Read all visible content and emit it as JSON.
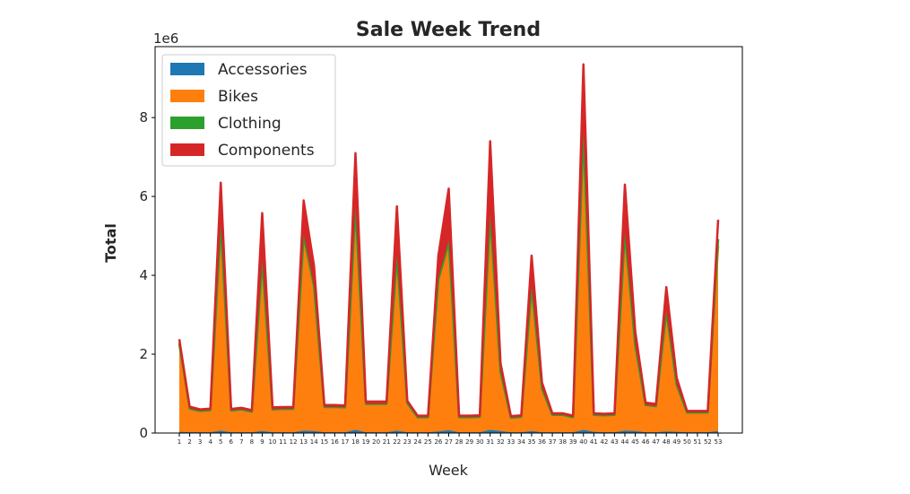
{
  "chart_data": {
    "type": "area",
    "stacked": true,
    "title": "Sale Week Trend",
    "xlabel": "Week",
    "ylabel": "Total",
    "y_multiplier_label": "1e6",
    "ylim": [
      0,
      9.8
    ],
    "y_ticks": [
      0,
      2,
      4,
      6,
      8
    ],
    "y_tick_labels": [
      "0",
      "2",
      "4",
      "6",
      "8"
    ],
    "x": [
      1,
      2,
      3,
      4,
      5,
      6,
      7,
      8,
      9,
      10,
      11,
      12,
      13,
      14,
      15,
      16,
      17,
      18,
      19,
      20,
      21,
      22,
      23,
      24,
      25,
      26,
      27,
      28,
      29,
      30,
      31,
      32,
      33,
      34,
      35,
      36,
      37,
      38,
      39,
      40,
      41,
      42,
      43,
      44,
      45,
      46,
      47,
      48,
      49,
      50,
      51,
      52,
      53
    ],
    "x_tick_labels": [
      "1",
      "2",
      "3",
      "4",
      "5",
      "6",
      "7",
      "8",
      "9",
      "10",
      "11",
      "12",
      "13",
      "14",
      "15",
      "16",
      "17",
      "18",
      "19",
      "20",
      "21",
      "22",
      "23",
      "24",
      "25",
      "26",
      "27",
      "28",
      "29",
      "30",
      "31",
      "32",
      "33",
      "34",
      "35",
      "36",
      "37",
      "38",
      "39",
      "40",
      "41",
      "42",
      "43",
      "44",
      "45",
      "46",
      "47",
      "48",
      "49",
      "50",
      "51",
      "52",
      "53"
    ],
    "grid": false,
    "legend_position": "top-left",
    "series": [
      {
        "name": "Accessories",
        "color": "#1f77b4",
        "values": [
          0.03,
          0.02,
          0.02,
          0.02,
          0.06,
          0.02,
          0.02,
          0.02,
          0.05,
          0.02,
          0.02,
          0.02,
          0.06,
          0.05,
          0.02,
          0.02,
          0.02,
          0.08,
          0.02,
          0.02,
          0.02,
          0.06,
          0.02,
          0.02,
          0.02,
          0.04,
          0.07,
          0.02,
          0.02,
          0.02,
          0.08,
          0.05,
          0.02,
          0.02,
          0.05,
          0.02,
          0.02,
          0.02,
          0.02,
          0.08,
          0.03,
          0.02,
          0.02,
          0.06,
          0.05,
          0.02,
          0.02,
          0.04,
          0.03,
          0.02,
          0.02,
          0.02,
          0.05
        ]
      },
      {
        "name": "Bikes",
        "color": "#ff7f0e",
        "values": [
          2.22,
          0.58,
          0.52,
          0.54,
          5.05,
          0.53,
          0.56,
          0.5,
          4.18,
          0.56,
          0.57,
          0.57,
          4.8,
          3.55,
          0.62,
          0.62,
          0.61,
          5.45,
          0.7,
          0.7,
          0.7,
          4.3,
          0.72,
          0.37,
          0.37,
          3.75,
          4.65,
          0.37,
          0.37,
          0.38,
          5.25,
          1.45,
          0.36,
          0.38,
          3.55,
          1.07,
          0.43,
          0.43,
          0.37,
          7.3,
          0.42,
          0.42,
          0.43,
          4.85,
          2.1,
          0.67,
          0.64,
          2.95,
          1.15,
          0.48,
          0.48,
          0.48,
          4.7
        ]
      },
      {
        "name": "Clothing",
        "color": "#2ca02c",
        "values": [
          0.03,
          0.02,
          0.02,
          0.02,
          0.18,
          0.02,
          0.02,
          0.02,
          0.15,
          0.02,
          0.02,
          0.02,
          0.17,
          0.12,
          0.02,
          0.02,
          0.02,
          0.2,
          0.02,
          0.02,
          0.02,
          0.15,
          0.02,
          0.01,
          0.01,
          0.13,
          0.16,
          0.01,
          0.01,
          0.01,
          0.2,
          0.05,
          0.01,
          0.01,
          0.12,
          0.04,
          0.01,
          0.01,
          0.01,
          0.25,
          0.01,
          0.01,
          0.01,
          0.17,
          0.07,
          0.02,
          0.02,
          0.1,
          0.04,
          0.02,
          0.02,
          0.02,
          0.17
        ]
      },
      {
        "name": "Components",
        "color": "#d62728",
        "values": [
          0.1,
          0.05,
          0.04,
          0.04,
          1.06,
          0.04,
          0.04,
          0.04,
          1.2,
          0.05,
          0.05,
          0.05,
          0.87,
          0.52,
          0.05,
          0.05,
          0.05,
          1.37,
          0.06,
          0.06,
          0.06,
          1.24,
          0.06,
          0.04,
          0.04,
          0.58,
          1.32,
          0.04,
          0.04,
          0.04,
          1.87,
          0.22,
          0.04,
          0.04,
          0.78,
          0.15,
          0.04,
          0.04,
          0.04,
          1.72,
          0.04,
          0.04,
          0.04,
          1.22,
          0.36,
          0.06,
          0.06,
          0.61,
          0.18,
          0.04,
          0.04,
          0.04,
          0.49
        ]
      }
    ]
  }
}
